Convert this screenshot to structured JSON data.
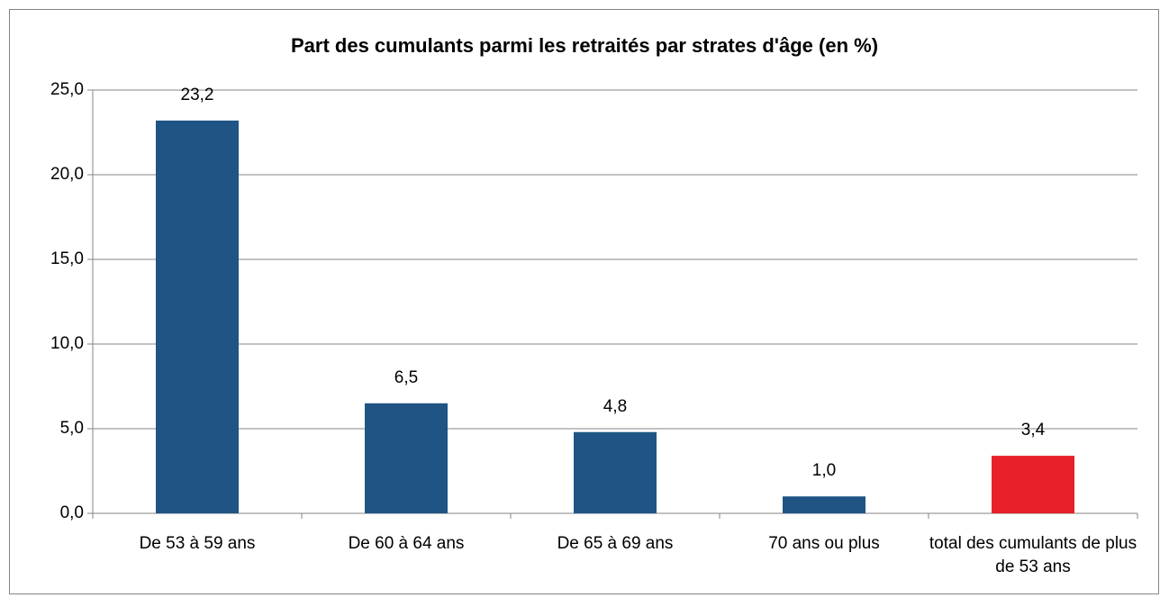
{
  "chart_data": {
    "type": "bar",
    "title": "Part des cumulants parmi les retraités par strates d'âge (en %)",
    "categories": [
      "De 53 à 59 ans",
      "De 60 à 64 ans",
      "De 65 à 69 ans",
      "70 ans ou plus",
      "total des cumulants de plus de 53 ans"
    ],
    "values": [
      23.2,
      6.5,
      4.8,
      1.0,
      3.4
    ],
    "value_labels": [
      "23,2",
      "6,5",
      "4,8",
      "1,0",
      "3,4"
    ],
    "colors": [
      "#1f5485",
      "#1f5485",
      "#1f5485",
      "#1f5485",
      "#e8202a"
    ],
    "ylim": [
      0,
      25
    ],
    "yticks": [
      {
        "value": 0,
        "label": "0,0"
      },
      {
        "value": 5,
        "label": "5,0"
      },
      {
        "value": 10,
        "label": "10,0"
      },
      {
        "value": 15,
        "label": "15,0"
      },
      {
        "value": 20,
        "label": "20,0"
      },
      {
        "value": 25,
        "label": "25,0"
      }
    ],
    "grid": true
  }
}
